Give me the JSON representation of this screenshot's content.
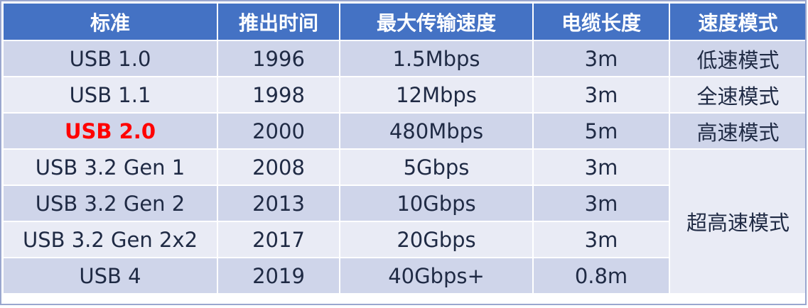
{
  "headers": [
    "标准",
    "推出时间",
    "最大传输速度",
    "电缆长度",
    "速度模式"
  ],
  "rows": [
    {
      "standard": "USB 1.0",
      "year": "1996",
      "speed": "1.5Mbps",
      "cable": "3m",
      "mode": "低速模式"
    },
    {
      "standard": "USB 1.1",
      "year": "1998",
      "speed": "12Mbps",
      "cable": "3m",
      "mode": "全速模式"
    },
    {
      "standard": "USB 2.0",
      "year": "2000",
      "speed": "480Mbps",
      "cable": "5m",
      "mode": "高速模式"
    },
    {
      "standard": "USB 3.2 Gen 1",
      "year": "2008",
      "speed": "5Gbps",
      "cable": "3m"
    },
    {
      "standard": "USB 3.2 Gen 2",
      "year": "2013",
      "speed": "10Gbps",
      "cable": "3m"
    },
    {
      "standard": "USB 3.2 Gen 2x2",
      "year": "2017",
      "speed": "20Gbps",
      "cable": "3m"
    },
    {
      "standard": "USB 4",
      "year": "2019",
      "speed": "40Gbps+",
      "cable": "0.8m"
    }
  ],
  "merged_mode": "超高速模式",
  "colors": {
    "header_bg": "#4472c4",
    "row_dark": "#cfd5ea",
    "row_light": "#e9ebf5",
    "highlight": "#ff0000"
  }
}
